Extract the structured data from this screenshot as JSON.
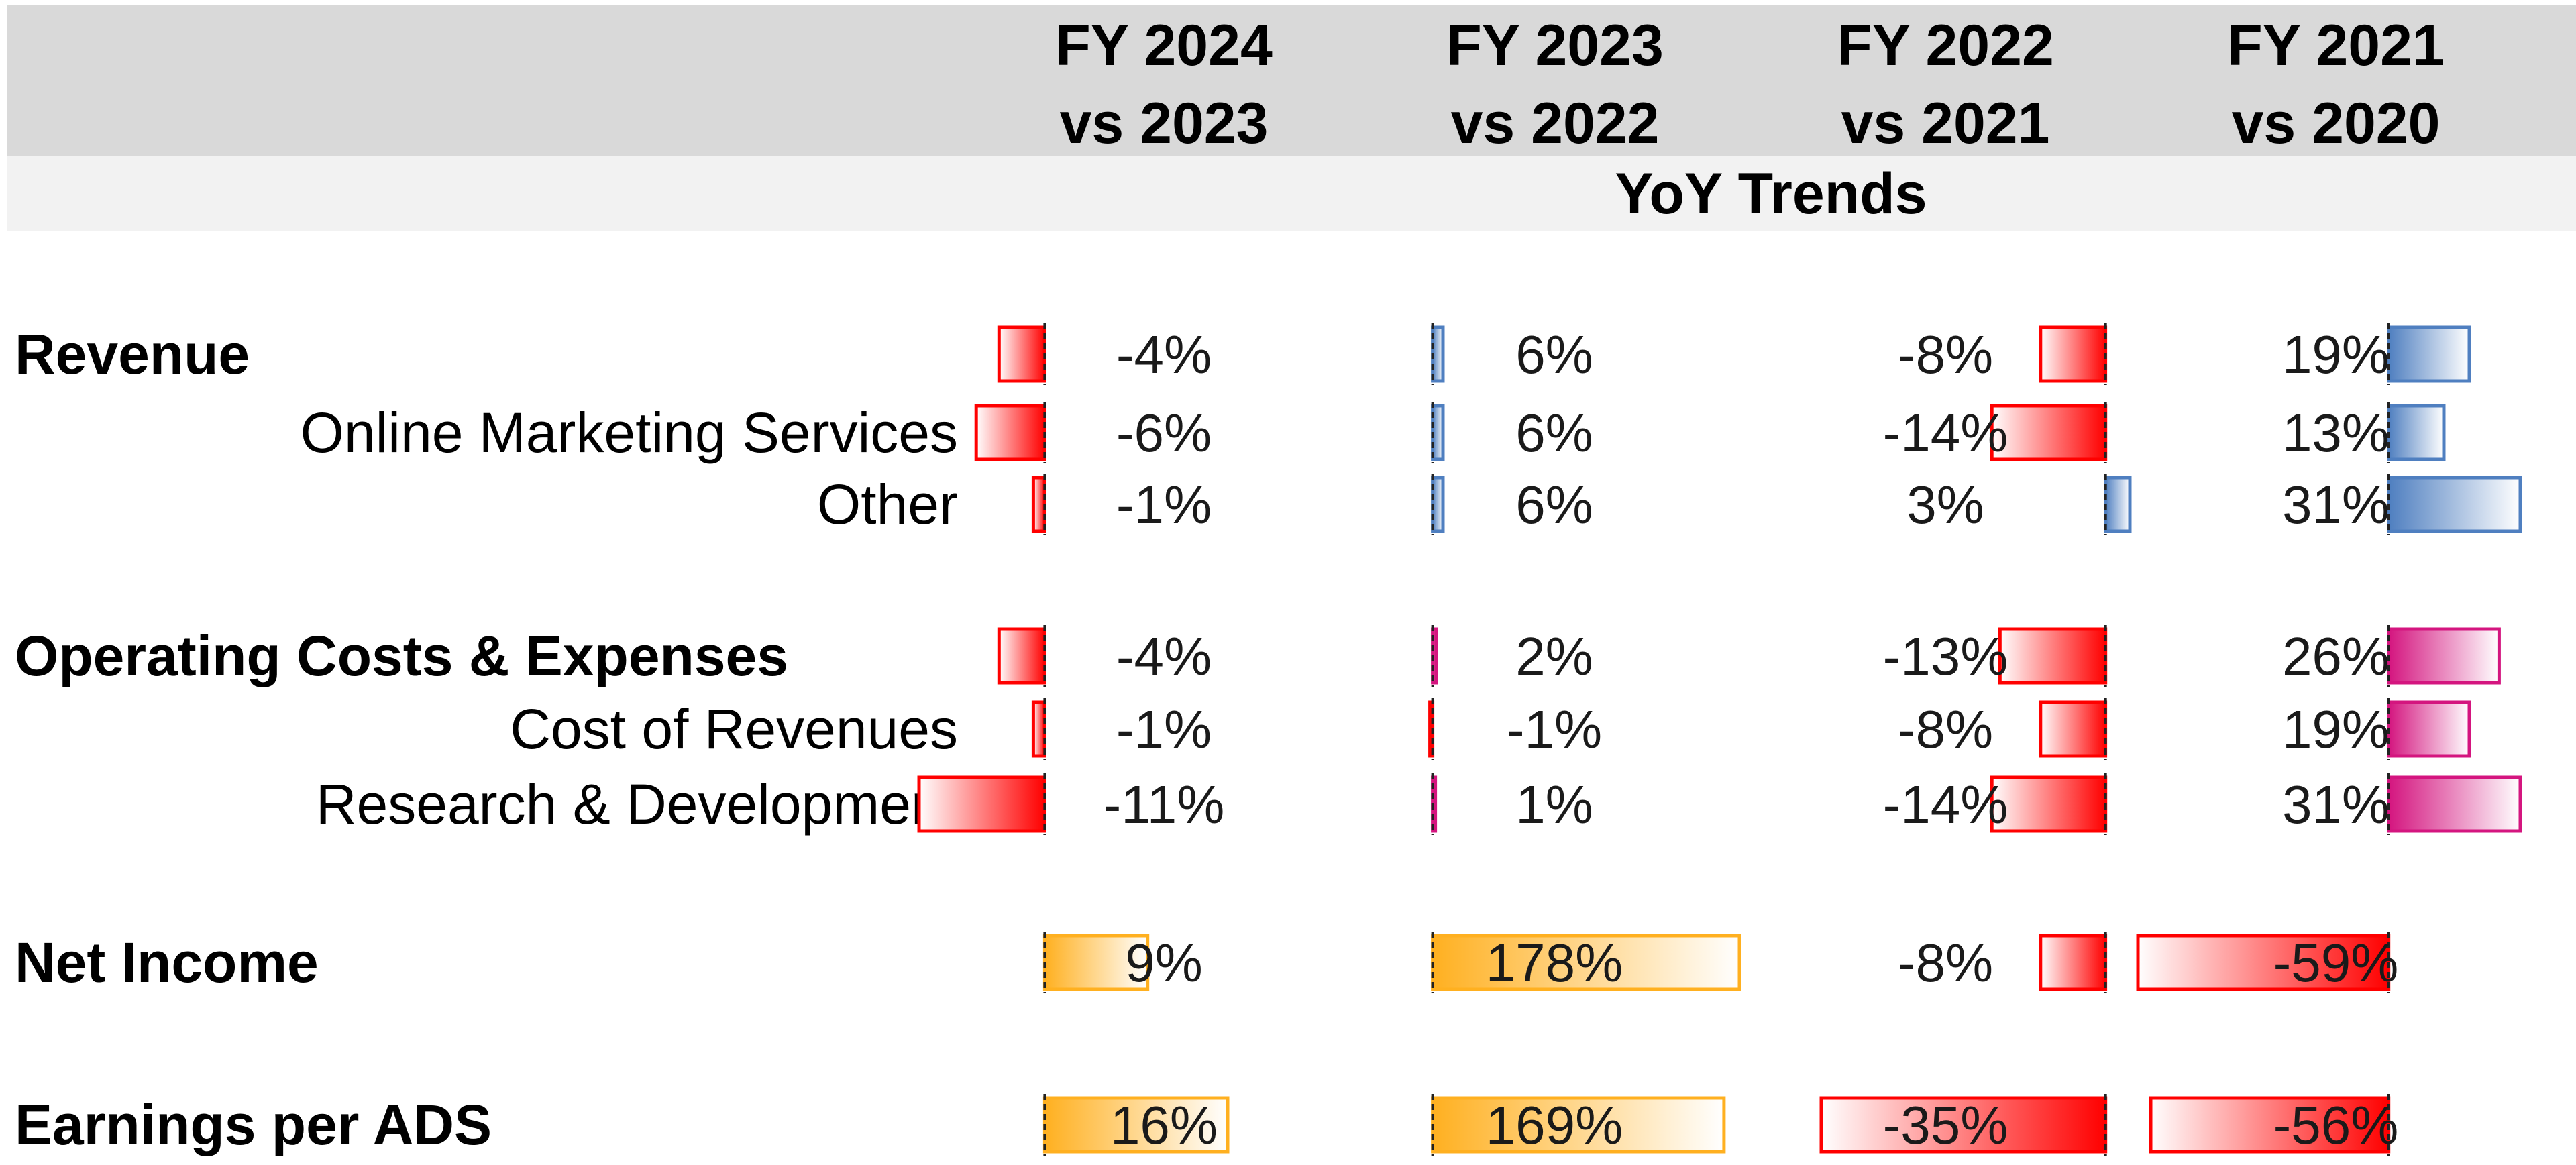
{
  "header": {
    "columns": [
      "FY 2024\nvs 2023",
      "FY 2023\nvs 2022",
      "FY 2022\nvs 2021",
      "FY 2021\nvs 2020"
    ],
    "subtitle": "YoY Trends"
  },
  "colors": {
    "negative": "#ff0000",
    "revenue_positive": "#4f7fc0",
    "cost_positive": "#d4157f",
    "profit_positive": "#ffb020",
    "header_bg": "#d9d9d9",
    "subheader_bg": "#f2f2f2"
  },
  "chart_data": {
    "type": "table",
    "title": "YoY Trends",
    "columns": [
      "FY 2024 vs 2023",
      "FY 2023 vs 2022",
      "FY 2022 vs 2021",
      "FY 2021 vs 2020"
    ],
    "unit": "%",
    "rows": [
      {
        "label": "Revenue",
        "bold": true,
        "group": "revenue",
        "values": [
          -4,
          6,
          -8,
          19
        ]
      },
      {
        "label": "Online Marketing Services",
        "bold": false,
        "group": "revenue",
        "values": [
          -6,
          6,
          -14,
          13
        ]
      },
      {
        "label": "Other",
        "bold": false,
        "group": "revenue",
        "values": [
          -1,
          6,
          3,
          31
        ]
      },
      {
        "label": "Operating Costs & Expenses",
        "bold": true,
        "group": "cost",
        "values": [
          -4,
          2,
          -13,
          26
        ]
      },
      {
        "label": "Cost of Revenues",
        "bold": false,
        "group": "cost",
        "values": [
          -1,
          -1,
          -8,
          19
        ]
      },
      {
        "label": "Research & Development",
        "bold": false,
        "group": "cost",
        "values": [
          -11,
          1,
          -14,
          31
        ]
      },
      {
        "label": "Net Income",
        "bold": true,
        "group": "profit",
        "values": [
          9,
          178,
          -8,
          -59
        ]
      },
      {
        "label": "Earnings per ADS",
        "bold": true,
        "group": "profit",
        "values": [
          16,
          169,
          -35,
          -56
        ]
      }
    ]
  }
}
